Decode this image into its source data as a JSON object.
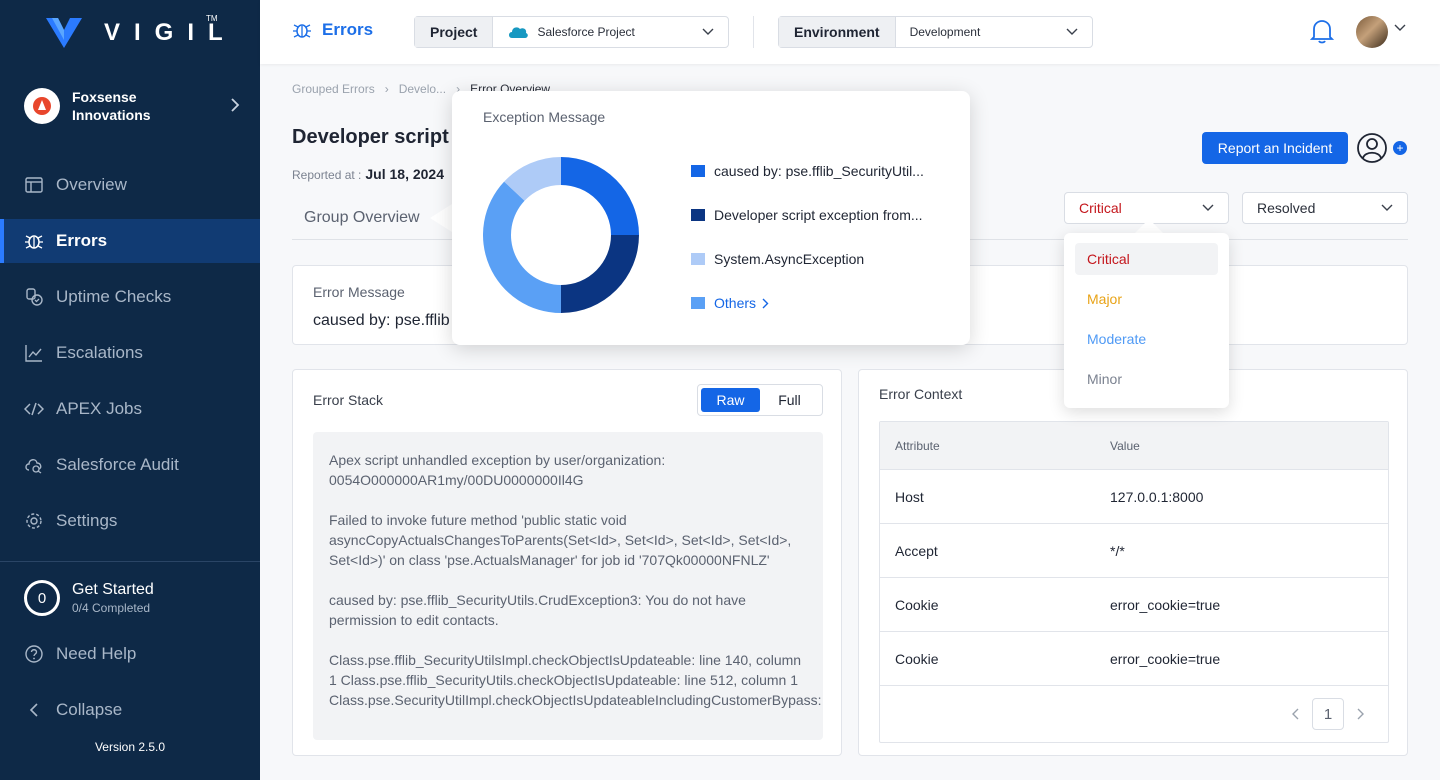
{
  "sidebar": {
    "brand": "VIGIL",
    "brand_tm": "TM",
    "org_name": "Foxsense Innovations",
    "nav": [
      {
        "label": "Overview",
        "icon": "overview-icon",
        "active": false
      },
      {
        "label": "Errors",
        "icon": "bug-icon",
        "active": true
      },
      {
        "label": "Uptime Checks",
        "icon": "uptime-icon",
        "active": false
      },
      {
        "label": "Escalations",
        "icon": "chart-icon",
        "active": false
      },
      {
        "label": "APEX Jobs",
        "icon": "code-icon",
        "active": false
      },
      {
        "label": "Salesforce Audit",
        "icon": "cloud-search-icon",
        "active": false
      },
      {
        "label": "Settings",
        "icon": "gear-icon",
        "active": false
      }
    ],
    "get_started": {
      "count": "0",
      "title": "Get Started",
      "subtitle": "0/4 Completed"
    },
    "need_help": "Need Help",
    "collapse": "Collapse",
    "version": "Version 2.5.0"
  },
  "topbar": {
    "title": "Errors",
    "project_label": "Project",
    "project_value": "Salesforce Project",
    "env_label": "Environment",
    "env_value": "Development"
  },
  "breadcrumb": [
    "Grouped Errors",
    "Develo...",
    "Error Overview"
  ],
  "page": {
    "title": "Developer script e",
    "reported_label": "Reported at :",
    "reported_date": "Jul 18, 2024",
    "report_button": "Report an Incident",
    "tab_group": "Group Overview",
    "severity_value": "Critical",
    "status_value": "Resolved"
  },
  "error_message": {
    "label": "Error Message",
    "value": "caused by: pse.fflib"
  },
  "error_stack": {
    "title": "Error Stack",
    "toggle_raw": "Raw",
    "toggle_full": "Full",
    "paragraphs": [
      "Apex script unhandled exception by user/organization: 0054O000000AR1my/00DU0000000Il4G",
      "Failed to invoke future method 'public static void asyncCopyActualsChangesToParents(Set<Id>, Set<Id>, Set<Id>, Set<Id>, Set<Id>)' on class 'pse.ActualsManager' for job id '707Qk00000NFNLZ'",
      "caused by: pse.fflib_SecurityUtils.CrudException3: You do not have permission to edit contacts.",
      "Class.pse.fflib_SecurityUtilsImpl.checkObjectIsUpdateable: line 140, column 1 Class.pse.fflib_SecurityUtils.checkObjectIsUpdateable: line 512, column 1 Class.pse.SecurityUtilImpl.checkObjectIsUpdateableIncludingCustomerBypass:"
    ]
  },
  "error_context": {
    "title": "Error Context",
    "headers": [
      "Attribute",
      "Value"
    ],
    "rows": [
      [
        "Host",
        "127.0.0.1:8000"
      ],
      [
        "Accept",
        "*/*"
      ],
      [
        "Cookie",
        "error_cookie=true"
      ],
      [
        "Cookie",
        "error_cookie=true"
      ]
    ],
    "page": "1"
  },
  "severity_dropdown": {
    "options": [
      {
        "label": "Critical",
        "color": "#c4161c"
      },
      {
        "label": "Major",
        "color": "#e8a317"
      },
      {
        "label": "Moderate",
        "color": "#4f9af5"
      },
      {
        "label": "Minor",
        "color": "#7b8290"
      }
    ]
  },
  "exception_popover": {
    "title": "Exception Message",
    "legend": [
      {
        "label": "caused by: pse.fflib_SecurityUtil...",
        "color": "#1466e6"
      },
      {
        "label": "Developer script exception from...",
        "color": "#0b3582"
      },
      {
        "label": "System.AsyncException",
        "color": "#aecbf7"
      },
      {
        "label": "Others",
        "color": "#5aa0f5"
      }
    ]
  },
  "chart_data": {
    "type": "pie",
    "categories": [
      "caused by: pse.fflib_SecurityUtil...",
      "Developer script exception from...",
      "Others",
      "System.AsyncException"
    ],
    "values": [
      25,
      25,
      37,
      13
    ],
    "colors": [
      "#1466e6",
      "#0b3582",
      "#5aa0f5",
      "#aecbf7"
    ],
    "title": "Exception Message"
  }
}
